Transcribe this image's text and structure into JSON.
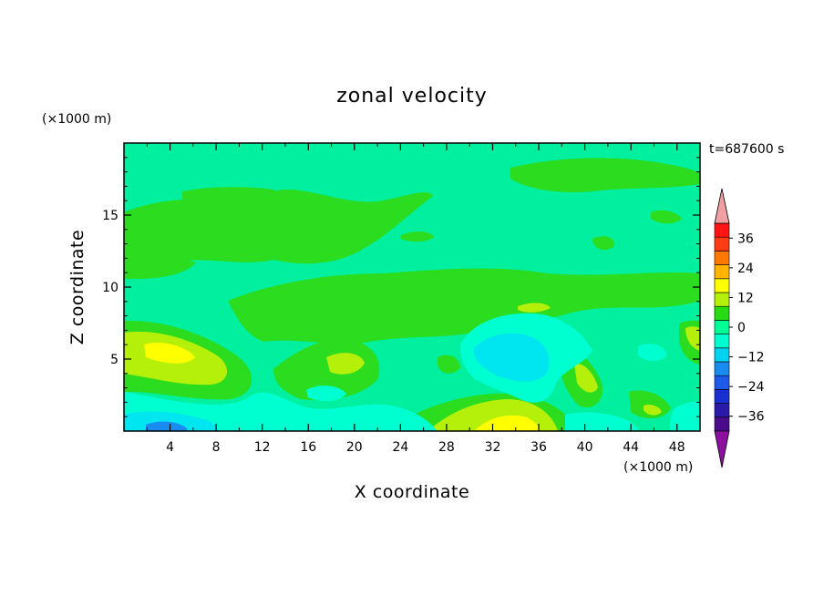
{
  "chart_data": {
    "type": "heatmap",
    "title": "zonal velocity",
    "xlabel": "X coordinate",
    "ylabel": "Z coordinate",
    "x_unit": "(×1000 m)",
    "y_unit": "(×1000 m)",
    "time_label": "t=687600 s",
    "xlim": [
      0,
      50
    ],
    "ylim": [
      0,
      20
    ],
    "x_ticks": [
      4,
      8,
      12,
      16,
      20,
      24,
      28,
      32,
      36,
      40,
      44,
      48
    ],
    "y_ticks": [
      5,
      10,
      15
    ],
    "colorbar": {
      "levels": [
        -42,
        -36,
        -30,
        -24,
        -18,
        -12,
        -6,
        0,
        6,
        12,
        18,
        24,
        30,
        36,
        42
      ],
      "tick_labels": [
        "36",
        "24",
        "12",
        "0",
        "-12",
        "-24",
        "-36"
      ],
      "tick_values": [
        36,
        24,
        12,
        0,
        -12,
        -24,
        -36
      ],
      "colors": [
        "#4b0c8c",
        "#2a1aa8",
        "#1a2fd0",
        "#1e5ae8",
        "#1a8cf0",
        "#00d2f0",
        "#00ffd0",
        "#00ff96",
        "#28dc14",
        "#b4f00a",
        "#ffff00",
        "#ffb400",
        "#ff7800",
        "#ff3c14",
        "#ff1414"
      ],
      "overflow_high_color": "#f0a0a0",
      "overflow_low_color": "#8c10a0"
    },
    "features": [
      {
        "x": 4,
        "z": 5.5,
        "value": 12
      },
      {
        "x": 33,
        "z": 0.5,
        "value": 18
      },
      {
        "x": 33,
        "z": 5,
        "value": -12
      },
      {
        "x": 20,
        "z": 4.5,
        "value": 6
      },
      {
        "x": 2,
        "z": 0.3,
        "value": -18
      },
      {
        "x": 44,
        "z": 2,
        "value": 6
      },
      {
        "x": 40,
        "z": 3.5,
        "value": 6
      },
      {
        "x": 12,
        "z": 0.3,
        "value": 6
      }
    ]
  }
}
